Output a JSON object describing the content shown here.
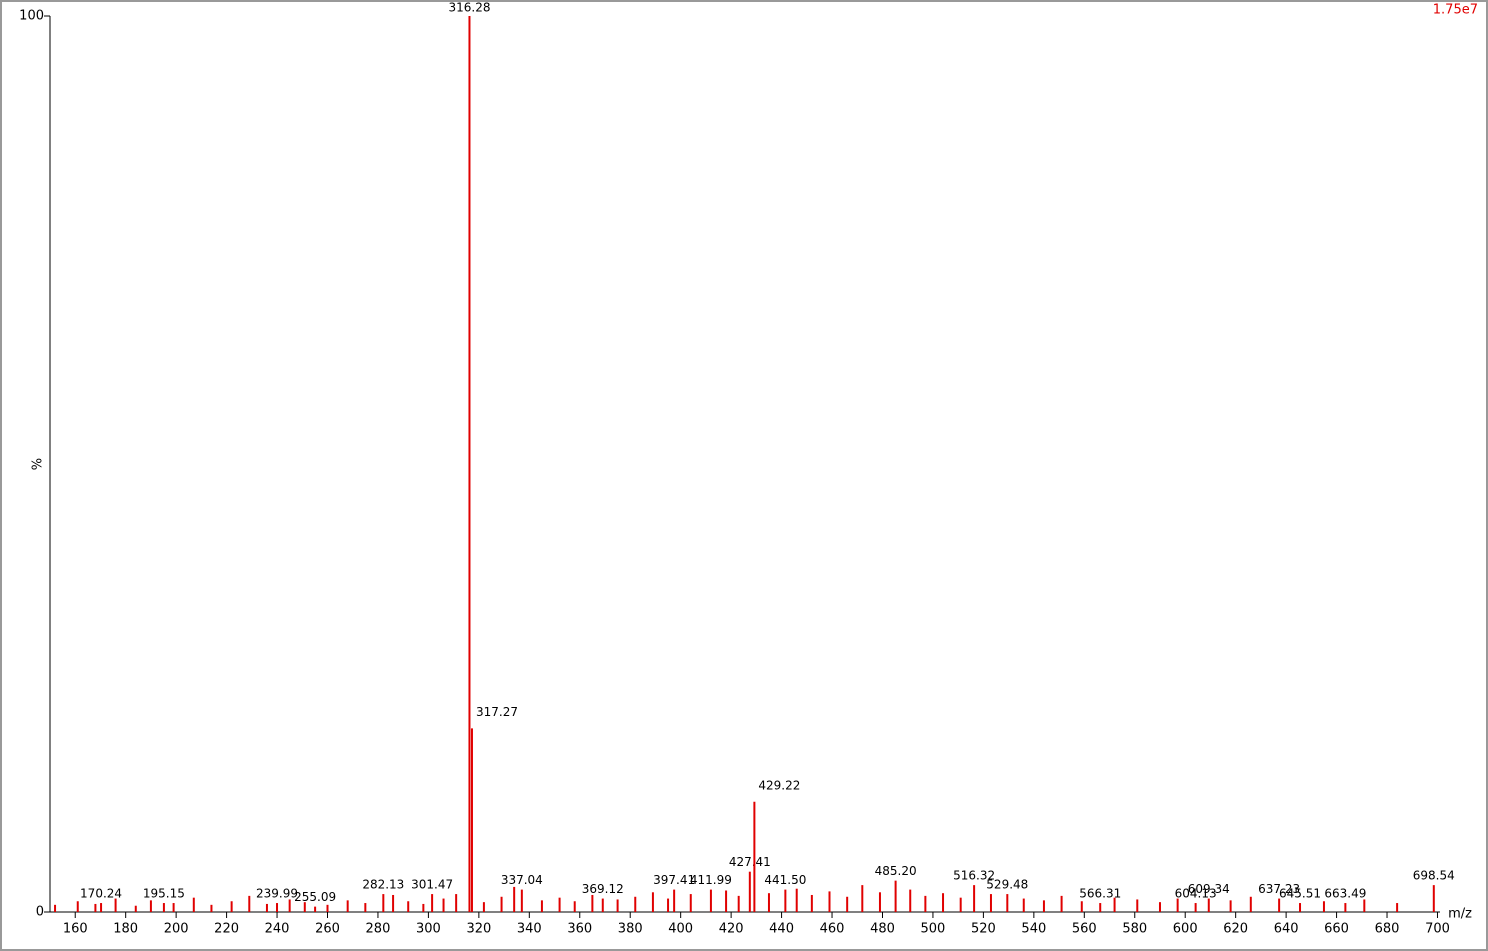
{
  "chart_data": {
    "type": "stick",
    "annotation": "1.75e7",
    "y_label": "%",
    "x_label": "m/z",
    "xlim": [
      150,
      701
    ],
    "ylim": [
      0,
      100
    ],
    "yticks": [
      0,
      100
    ],
    "xticks": [
      160,
      180,
      200,
      220,
      240,
      260,
      280,
      300,
      320,
      340,
      360,
      380,
      400,
      420,
      440,
      460,
      480,
      500,
      520,
      540,
      560,
      580,
      600,
      620,
      640,
      660,
      680,
      700
    ],
    "series": [
      {
        "color": "#e00000",
        "x": [
          170.24,
          195.15,
          239.99,
          255.09,
          282.13,
          301.47,
          316.28,
          317.27,
          337.04,
          369.12,
          397.41,
          411.99,
          427.41,
          429.22,
          441.5,
          485.2,
          516.32,
          529.48,
          566.31,
          604.13,
          609.34,
          637.23,
          645.51,
          663.49,
          698.54
        ],
        "x_labels": [
          "170.24",
          "195.15",
          "239.99",
          "255.09",
          "282.13",
          "301.47",
          "316.28",
          "317.27",
          "337.04",
          "369.12",
          "397.41",
          "411.99",
          "427.41",
          "429.22",
          "441.50",
          "485.20",
          "516.32",
          "529.48",
          "566.31",
          "604.13",
          "609.34",
          "637.23",
          "645.51",
          "663.49",
          "698.54"
        ],
        "values": [
          1,
          1,
          1,
          0.6,
          2,
          2,
          100,
          20.5,
          2.5,
          1.5,
          2.5,
          2.5,
          4.5,
          12.3,
          2.5,
          3.5,
          3,
          2,
          1,
          1,
          1.5,
          1.5,
          1,
          1,
          3
        ]
      },
      {
        "color": "#e00000",
        "x": [
          152,
          161,
          168,
          176,
          184,
          190,
          199,
          207,
          214,
          222,
          229,
          236,
          245,
          251,
          260,
          268,
          275,
          286,
          292,
          298,
          306,
          311,
          322,
          329,
          334,
          345,
          352,
          358,
          365,
          375,
          382,
          389,
          395,
          404,
          418,
          423,
          435,
          446,
          452,
          459,
          466,
          472,
          479,
          491,
          497,
          504,
          511,
          523,
          536,
          544,
          551,
          559,
          572,
          581,
          590,
          597,
          618,
          626,
          655,
          671,
          684
        ],
        "values": [
          0.8,
          1.2,
          0.9,
          1.5,
          0.7,
          1.3,
          1.0,
          1.6,
          0.8,
          1.2,
          1.8,
          0.9,
          1.4,
          1.1,
          0.8,
          1.3,
          1.0,
          1.9,
          1.2,
          0.9,
          1.5,
          2.0,
          1.1,
          1.7,
          2.8,
          1.3,
          1.6,
          1.2,
          1.9,
          1.4,
          1.7,
          2.2,
          1.5,
          2.0,
          2.4,
          1.8,
          2.1,
          2.6,
          1.9,
          2.3,
          1.7,
          3.0,
          2.2,
          2.5,
          1.8,
          2.1,
          1.6,
          2.0,
          1.5,
          1.3,
          1.8,
          1.2,
          1.6,
          1.4,
          1.1,
          1.5,
          1.3,
          1.7,
          1.2,
          1.4,
          1.0
        ]
      }
    ]
  }
}
